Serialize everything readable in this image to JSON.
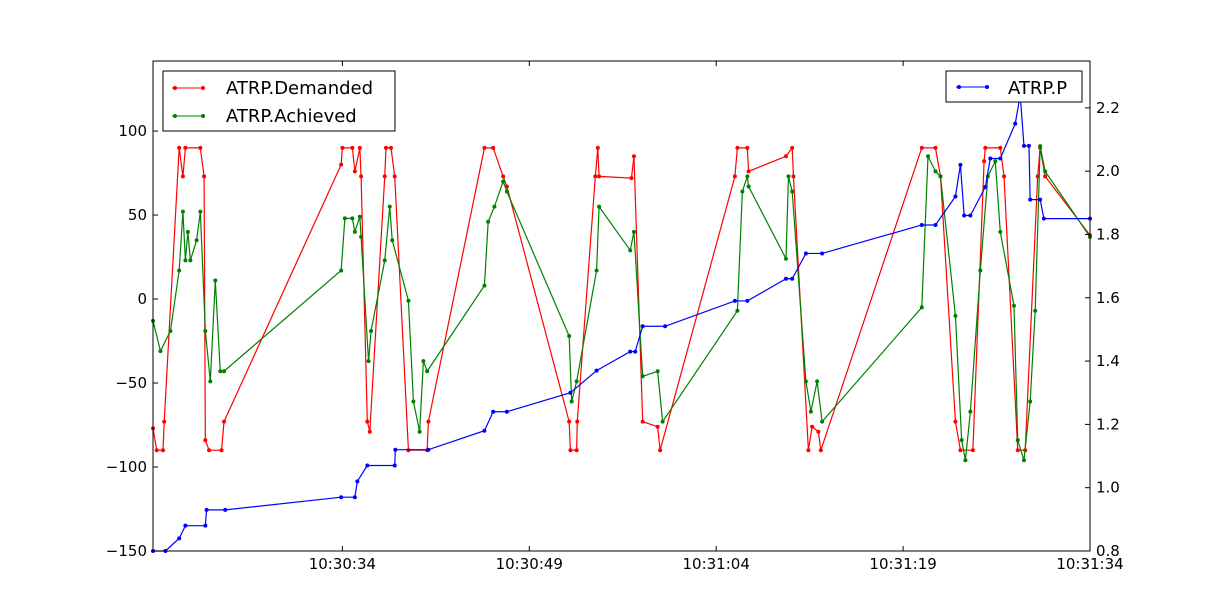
{
  "chart_data": {
    "type": "line",
    "title": "",
    "xlabel": "",
    "ylabel": "",
    "x_unit": "seconds after 10:30:00",
    "xlim": [
      18.8,
      94
    ],
    "ylim_left": [
      -150,
      141.7
    ],
    "ylim_right": [
      0.8,
      2.348
    ],
    "grid": false,
    "x_ticks": [
      {
        "value": 34,
        "label": "10:30:34"
      },
      {
        "value": 49,
        "label": "10:30:49"
      },
      {
        "value": 64,
        "label": "10:31:04"
      },
      {
        "value": 79,
        "label": "10:31:19"
      },
      {
        "value": 94,
        "label": "10:31:34"
      }
    ],
    "y_left_ticks": [
      {
        "value": 100,
        "label": "100"
      },
      {
        "value": 50,
        "label": "50"
      },
      {
        "value": 0,
        "label": "0"
      },
      {
        "value": -50,
        "label": "−50"
      },
      {
        "value": -100,
        "label": "−100"
      },
      {
        "value": -150,
        "label": "−150"
      }
    ],
    "y_right_ticks": [
      {
        "value": 2.2,
        "label": "2.2"
      },
      {
        "value": 2.0,
        "label": "2.0"
      },
      {
        "value": 1.8,
        "label": "1.8"
      },
      {
        "value": 1.6,
        "label": "1.6"
      },
      {
        "value": 1.4,
        "label": "1.4"
      },
      {
        "value": 1.2,
        "label": "1.2"
      },
      {
        "value": 1.0,
        "label": "1.0"
      },
      {
        "value": 0.8,
        "label": "0.8"
      }
    ],
    "legend_left": {
      "placement": "top-left",
      "entries": [
        "ATRP.Demanded",
        "ATRP.Achieved"
      ]
    },
    "legend_right": {
      "placement": "top-right",
      "entries": [
        "ATRP.P"
      ]
    },
    "series": [
      {
        "name": "ATRP.Demanded",
        "axis": "left",
        "color": "#ff0000",
        "points": [
          [
            18.8,
            -77
          ],
          [
            19.1,
            -90
          ],
          [
            19.6,
            -90
          ],
          [
            19.7,
            -73
          ],
          [
            20.9,
            90
          ],
          [
            21.2,
            73
          ],
          [
            21.4,
            90
          ],
          [
            22.6,
            90
          ],
          [
            22.9,
            73
          ],
          [
            23.0,
            -84
          ],
          [
            23.3,
            -90
          ],
          [
            24.3,
            -90
          ],
          [
            24.5,
            -73
          ],
          [
            33.9,
            80
          ],
          [
            34.0,
            90
          ],
          [
            34.8,
            90
          ],
          [
            35.0,
            76
          ],
          [
            35.4,
            90
          ],
          [
            35.5,
            73
          ],
          [
            36.0,
            -73
          ],
          [
            36.2,
            -79
          ],
          [
            37.4,
            73
          ],
          [
            37.5,
            90
          ],
          [
            37.9,
            90
          ],
          [
            38.2,
            73
          ],
          [
            39.3,
            -90
          ],
          [
            40.8,
            -90
          ],
          [
            40.9,
            -73
          ],
          [
            45.4,
            90
          ],
          [
            46.1,
            90
          ],
          [
            46.9,
            73
          ],
          [
            47.2,
            67
          ],
          [
            52.2,
            -73
          ],
          [
            52.3,
            -90
          ],
          [
            52.8,
            -90
          ],
          [
            52.85,
            -73
          ],
          [
            54.3,
            73
          ],
          [
            54.5,
            90
          ],
          [
            54.6,
            73
          ],
          [
            57.2,
            72
          ],
          [
            57.4,
            85
          ],
          [
            58.1,
            -73
          ],
          [
            59.3,
            -76
          ],
          [
            59.5,
            -90
          ],
          [
            65.5,
            73
          ],
          [
            65.7,
            90
          ],
          [
            66.5,
            90
          ],
          [
            66.6,
            76
          ],
          [
            69.6,
            85
          ],
          [
            70.1,
            90
          ],
          [
            70.2,
            73
          ],
          [
            71.4,
            -90
          ],
          [
            71.7,
            -76
          ],
          [
            72.2,
            -79
          ],
          [
            72.4,
            -90
          ],
          [
            80.5,
            90
          ],
          [
            81.6,
            90
          ],
          [
            82.0,
            73
          ],
          [
            83.2,
            -73
          ],
          [
            83.6,
            -90
          ],
          [
            84.6,
            -90
          ],
          [
            85.5,
            82
          ],
          [
            85.6,
            90
          ],
          [
            86.8,
            90
          ],
          [
            87.1,
            73
          ],
          [
            88.2,
            -90
          ],
          [
            88.8,
            -90
          ],
          [
            89.8,
            73
          ],
          [
            90.0,
            90
          ],
          [
            90.4,
            73
          ],
          [
            94,
            38
          ]
        ]
      },
      {
        "name": "ATRP.Achieved",
        "axis": "left",
        "color": "#008000",
        "points": [
          [
            18.8,
            -13
          ],
          [
            19.4,
            -31
          ],
          [
            20.2,
            -19
          ],
          [
            20.9,
            17
          ],
          [
            21.2,
            52
          ],
          [
            21.4,
            23
          ],
          [
            21.6,
            40
          ],
          [
            21.8,
            23
          ],
          [
            22.3,
            35
          ],
          [
            22.6,
            52
          ],
          [
            23.0,
            -19
          ],
          [
            23.4,
            -49
          ],
          [
            23.8,
            11
          ],
          [
            24.2,
            -43
          ],
          [
            24.5,
            -43
          ],
          [
            33.9,
            17
          ],
          [
            34.2,
            48
          ],
          [
            34.8,
            48
          ],
          [
            35.0,
            40
          ],
          [
            35.4,
            49
          ],
          [
            35.5,
            37
          ],
          [
            36.1,
            -37
          ],
          [
            36.3,
            -19
          ],
          [
            37.4,
            23
          ],
          [
            37.8,
            55
          ],
          [
            38.0,
            35
          ],
          [
            39.3,
            -1
          ],
          [
            39.7,
            -61
          ],
          [
            40.2,
            -79
          ],
          [
            40.5,
            -37
          ],
          [
            40.8,
            -43
          ],
          [
            45.4,
            8
          ],
          [
            45.7,
            46
          ],
          [
            46.2,
            55
          ],
          [
            46.9,
            70
          ],
          [
            47.2,
            64
          ],
          [
            52.2,
            -22
          ],
          [
            52.4,
            -61
          ],
          [
            52.8,
            -49
          ],
          [
            54.4,
            17
          ],
          [
            54.6,
            55
          ],
          [
            57.1,
            29
          ],
          [
            57.4,
            40
          ],
          [
            58.1,
            -46
          ],
          [
            59.3,
            -43
          ],
          [
            59.7,
            -73
          ],
          [
            65.7,
            -7
          ],
          [
            66.1,
            64
          ],
          [
            66.5,
            73
          ],
          [
            66.6,
            67
          ],
          [
            69.6,
            24
          ],
          [
            69.8,
            73
          ],
          [
            70.1,
            64
          ],
          [
            71.2,
            -49
          ],
          [
            71.6,
            -67
          ],
          [
            72.1,
            -49
          ],
          [
            72.5,
            -73
          ],
          [
            80.5,
            -5
          ],
          [
            81.0,
            85
          ],
          [
            81.6,
            76
          ],
          [
            82.0,
            73
          ],
          [
            83.2,
            -10
          ],
          [
            83.7,
            -84
          ],
          [
            84.0,
            -96
          ],
          [
            84.4,
            -67
          ],
          [
            85.2,
            17
          ],
          [
            85.8,
            73
          ],
          [
            86.4,
            82
          ],
          [
            86.8,
            40
          ],
          [
            87.9,
            -4
          ],
          [
            88.2,
            -84
          ],
          [
            88.7,
            -96
          ],
          [
            89.2,
            -61
          ],
          [
            89.6,
            -7
          ],
          [
            90.0,
            91
          ],
          [
            90.4,
            76
          ],
          [
            94,
            37
          ]
        ]
      },
      {
        "name": "ATRP.P",
        "axis": "right",
        "color": "#0000ff",
        "points": [
          [
            18.8,
            0.8
          ],
          [
            19.8,
            0.8
          ],
          [
            20.9,
            0.84
          ],
          [
            21.4,
            0.88
          ],
          [
            23.0,
            0.88
          ],
          [
            23.1,
            0.93
          ],
          [
            24.6,
            0.93
          ],
          [
            33.9,
            0.97
          ],
          [
            35.0,
            0.97
          ],
          [
            35.2,
            1.02
          ],
          [
            36.0,
            1.07
          ],
          [
            38.2,
            1.07
          ],
          [
            38.25,
            1.12
          ],
          [
            40.9,
            1.12
          ],
          [
            45.4,
            1.18
          ],
          [
            46.1,
            1.24
          ],
          [
            47.2,
            1.24
          ],
          [
            52.3,
            1.3
          ],
          [
            54.4,
            1.37
          ],
          [
            57.1,
            1.43
          ],
          [
            57.5,
            1.43
          ],
          [
            58.1,
            1.51
          ],
          [
            59.9,
            1.51
          ],
          [
            65.5,
            1.59
          ],
          [
            66.5,
            1.59
          ],
          [
            69.6,
            1.66
          ],
          [
            70.1,
            1.66
          ],
          [
            71.2,
            1.74
          ],
          [
            72.5,
            1.74
          ],
          [
            80.5,
            1.83
          ],
          [
            81.6,
            1.83
          ],
          [
            83.2,
            1.92
          ],
          [
            83.6,
            2.02
          ],
          [
            83.9,
            1.86
          ],
          [
            84.4,
            1.86
          ],
          [
            85.6,
            1.95
          ],
          [
            86.0,
            2.04
          ],
          [
            86.8,
            2.04
          ],
          [
            88.0,
            2.15
          ],
          [
            88.4,
            2.24
          ],
          [
            88.7,
            2.08
          ],
          [
            89.1,
            2.08
          ],
          [
            89.2,
            1.91
          ],
          [
            90.0,
            1.91
          ],
          [
            90.3,
            1.85
          ],
          [
            94,
            1.85
          ]
        ]
      }
    ]
  }
}
